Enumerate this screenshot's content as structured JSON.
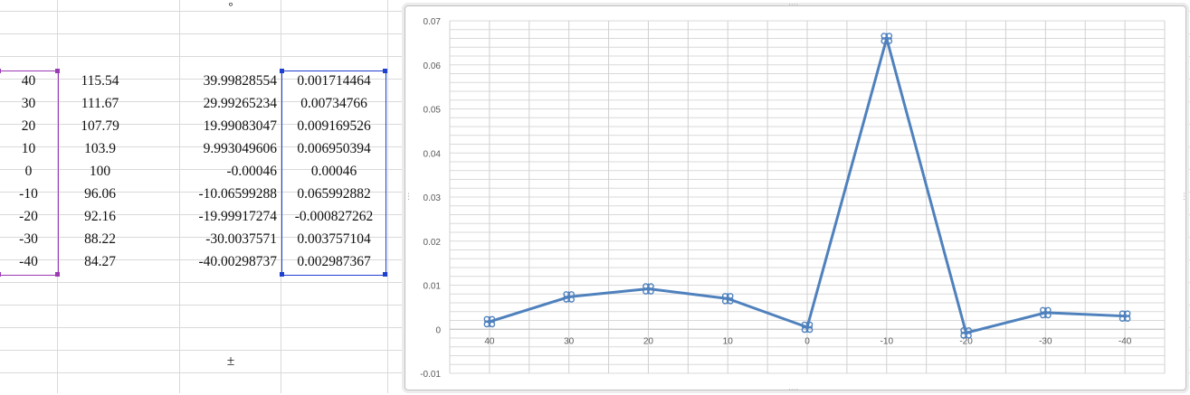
{
  "spreadsheet": {
    "col_a": [
      "40",
      "30",
      "20",
      "10",
      "0",
      "-10",
      "-20",
      "-30",
      "-40"
    ],
    "col_b": [
      "115.54",
      "111.67",
      "107.79",
      "103.9",
      "100",
      "96.06",
      "92.16",
      "88.22",
      "84.27"
    ],
    "col_d": [
      "39.99828554",
      "29.99265234",
      "19.99083047",
      "9.993049606",
      "-0.00046",
      "-10.06599288",
      "-19.99917274",
      "-30.0037571",
      "-40.00298737"
    ],
    "col_e": [
      "0.001714464",
      "0.00734766",
      "0.009169526",
      "0.006950394",
      "0.00046",
      "0.065992882",
      "-0.000827262",
      "0.003757104",
      "0.002987367"
    ],
    "degree_symbol": "°",
    "plusminus_symbol": "±"
  },
  "colors": {
    "series": "#4f81bd",
    "selection_a": "#9a3ab5",
    "selection_e": "#1f3fd0",
    "gridline": "#d9d9d9"
  },
  "chart_data": {
    "type": "line",
    "categories": [
      "40",
      "30",
      "20",
      "10",
      "0",
      "-10",
      "-20",
      "-30",
      "-40"
    ],
    "series": [
      {
        "values": [
          0.001714464,
          0.00734766,
          0.009169526,
          0.006950394,
          0.00046,
          0.065992882,
          -0.000827262,
          0.003757104,
          0.002987367
        ]
      }
    ],
    "y_ticks": [
      "0.07",
      "0.06",
      "0.05",
      "0.04",
      "0.03",
      "0.02",
      "0.01",
      "0",
      "-0.01"
    ],
    "ylim": [
      -0.01,
      0.07
    ],
    "title": "",
    "xlabel": "",
    "ylabel": "",
    "gridlines": true,
    "marker": "cross-circle"
  }
}
